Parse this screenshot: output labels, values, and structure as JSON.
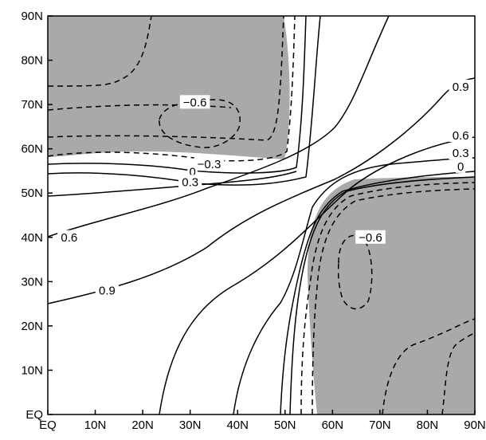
{
  "chart_data": {
    "type": "heatmap",
    "title": "",
    "xlabel": "",
    "ylabel": "",
    "xlim": [
      0,
      90
    ],
    "ylim": [
      0,
      90
    ],
    "x_tick_labels": [
      "EQ",
      "10N",
      "20N",
      "30N",
      "40N",
      "50N",
      "60N",
      "70N",
      "80N",
      "90N"
    ],
    "y_tick_labels": [
      "EQ",
      "10N",
      "20N",
      "30N",
      "40N",
      "50N",
      "60N",
      "70N",
      "80N",
      "90N"
    ],
    "grid": false,
    "shading": {
      "condition": "negative values",
      "color": "#a9a9a9"
    },
    "contour_levels": [
      -0.6,
      -0.3,
      0,
      0.3,
      0.6,
      0.9
    ],
    "negative_contour_style": "dashed",
    "contour_labels": [
      {
        "text": "-0.6",
        "x": 31,
        "y": 70.5
      },
      {
        "text": "-0.3",
        "x": 34,
        "y": 56.5
      },
      {
        "text": "0",
        "x": 30.5,
        "y": 54.8
      },
      {
        "text": "0.3",
        "x": 30,
        "y": 52.5
      },
      {
        "text": "0.6",
        "x": 4.5,
        "y": 40
      },
      {
        "text": "0.9",
        "x": 12.5,
        "y": 28
      },
      {
        "text": "0.9",
        "x": 87,
        "y": 74
      },
      {
        "text": "0.6",
        "x": 87,
        "y": 63
      },
      {
        "text": "0.3",
        "x": 87,
        "y": 59
      },
      {
        "text": "0",
        "x": 87,
        "y": 56
      },
      {
        "text": "-0.6",
        "x": 68,
        "y": 40
      }
    ],
    "colors": {
      "shade": "#a9a9a9",
      "line": "#000000",
      "label_bg": "#ffffff"
    }
  }
}
